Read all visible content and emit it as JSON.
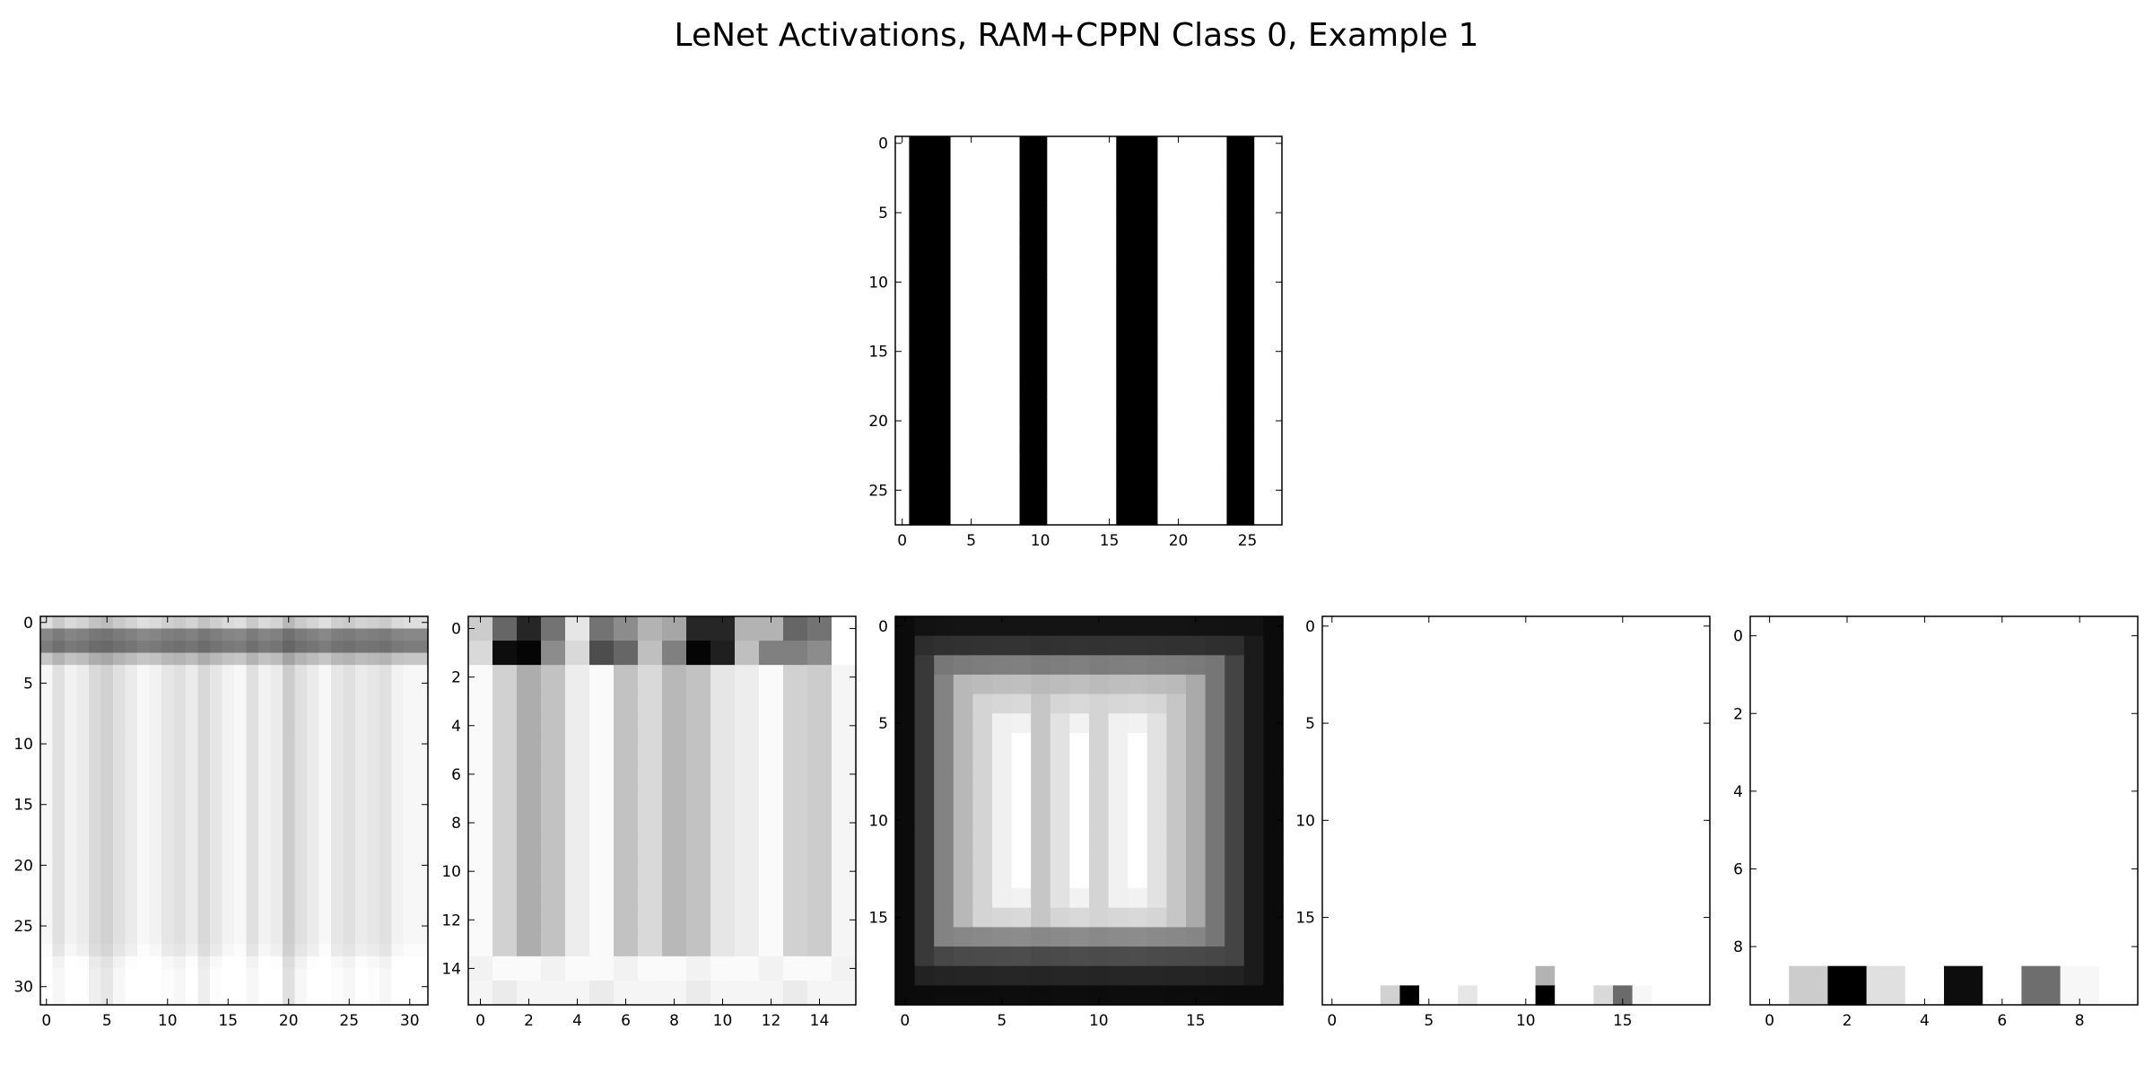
{
  "title": "LeNet Activations, RAM+CPPN Class 0, Example 1",
  "chart_data": [
    {
      "type": "heatmap",
      "panel": "input",
      "rows": 28,
      "cols": 28,
      "colormap": "gray (0 = black, 1 = white)",
      "xticks": [
        0,
        5,
        10,
        15,
        20,
        25
      ],
      "yticks": [
        0,
        5,
        10,
        15,
        20,
        25
      ],
      "row_profile": [
        1
      ],
      "col_profile": [
        1,
        0,
        0,
        0,
        1,
        1,
        1,
        1,
        1,
        0,
        0,
        1,
        1,
        1,
        1,
        1,
        0,
        0,
        0,
        1,
        1,
        1,
        1,
        1,
        0,
        0,
        1,
        1
      ]
    },
    {
      "type": "heatmap",
      "panel": "layer-1",
      "rows": 32,
      "cols": 32,
      "colormap": "gray (0 = black, 1 = white)",
      "xticks": [
        0,
        5,
        10,
        15,
        20,
        25,
        30
      ],
      "yticks": [
        0,
        5,
        10,
        15,
        20,
        25,
        30
      ],
      "col_profile": [
        0.97,
        0.88,
        0.95,
        0.92,
        0.85,
        0.82,
        0.88,
        0.92,
        0.97,
        0.95,
        0.9,
        0.88,
        0.92,
        0.85,
        0.9,
        0.95,
        0.97,
        0.88,
        0.95,
        0.92,
        0.8,
        0.88,
        0.92,
        0.97,
        0.9,
        0.88,
        0.92,
        0.9,
        0.88,
        0.95,
        0.97,
        0.97
      ],
      "row_profile": [
        0.9,
        0.55,
        0.5,
        0.8,
        1,
        1,
        1,
        1,
        1,
        1,
        1,
        1,
        1,
        1,
        1,
        1,
        1,
        1,
        1,
        1,
        1,
        1,
        1,
        1,
        1,
        1,
        1,
        1.02,
        1.08,
        1.1,
        1.1,
        1.1
      ]
    },
    {
      "type": "heatmap",
      "panel": "layer-2",
      "rows": 16,
      "cols": 16,
      "colormap": "gray (0 = black, 1 = white)",
      "xticks": [
        0,
        2,
        4,
        6,
        8,
        10,
        12,
        14
      ],
      "yticks": [
        0,
        2,
        4,
        6,
        8,
        10,
        12,
        14
      ],
      "row0": [
        0.8,
        0.4,
        0.15,
        0.45,
        0.9,
        0.45,
        0.55,
        0.7,
        0.65,
        0.15,
        0.15,
        0.7,
        0.7,
        0.4,
        0.45,
        1
      ],
      "row1": [
        0.85,
        0.05,
        0.02,
        0.55,
        0.85,
        0.3,
        0.4,
        0.75,
        0.5,
        0.02,
        0.12,
        0.75,
        0.5,
        0.5,
        0.55,
        1
      ],
      "col_body": [
        0.98,
        0.82,
        0.68,
        0.76,
        0.93,
        0.98,
        0.76,
        0.85,
        0.72,
        0.76,
        0.9,
        0.93,
        0.98,
        0.82,
        0.8,
        0.96
      ],
      "bottom_rows": [
        0.98,
        0.96
      ]
    },
    {
      "type": "heatmap",
      "panel": "layer-3",
      "rows": 20,
      "cols": 20,
      "colormap": "gray (0 = black, 1 = white)",
      "xticks": [
        0,
        5,
        10,
        15
      ],
      "yticks": [
        0,
        5,
        10,
        15
      ],
      "col_profile": [
        0.05,
        0.25,
        0.55,
        0.75,
        0.85,
        0.95,
        1,
        0.8,
        0.9,
        1,
        0.85,
        0.95,
        1,
        0.9,
        0.8,
        0.7,
        0.5,
        0.3,
        0.12,
        0.05
      ],
      "row_profile": [
        0.08,
        0.2,
        0.5,
        0.75,
        0.85,
        0.95,
        1,
        1,
        1,
        1,
        1,
        1,
        1,
        1,
        0.95,
        0.85,
        0.55,
        0.3,
        0.15,
        0.05
      ]
    },
    {
      "type": "heatmap",
      "panel": "layer-4",
      "rows": 20,
      "cols": 20,
      "colormap": "gray (0 = black, 1 = white)",
      "xticks": [
        0,
        5,
        10,
        15
      ],
      "yticks": [
        0,
        5,
        10,
        15
      ],
      "background": 1,
      "cells": [
        {
          "r": 19,
          "c": 3,
          "v": 0.82
        },
        {
          "r": 19,
          "c": 4,
          "v": 0.0
        },
        {
          "r": 19,
          "c": 7,
          "v": 0.9
        },
        {
          "r": 18,
          "c": 11,
          "v": 0.7
        },
        {
          "r": 19,
          "c": 11,
          "v": 0.0
        },
        {
          "r": 19,
          "c": 14,
          "v": 0.85
        },
        {
          "r": 19,
          "c": 15,
          "v": 0.42
        },
        {
          "r": 19,
          "c": 16,
          "v": 0.97
        }
      ]
    },
    {
      "type": "heatmap",
      "panel": "layer-5",
      "rows": 10,
      "cols": 10,
      "colormap": "gray (0 = black, 1 = white)",
      "xticks": [
        0,
        2,
        4,
        6,
        8
      ],
      "yticks": [
        0,
        2,
        4,
        6,
        8
      ],
      "background": 1,
      "cells": [
        {
          "r": 9,
          "c": 1,
          "v": 0.8
        },
        {
          "r": 9,
          "c": 2,
          "v": 0.0
        },
        {
          "r": 9,
          "c": 3,
          "v": 0.88
        },
        {
          "r": 9,
          "c": 5,
          "v": 0.05
        },
        {
          "r": 9,
          "c": 7,
          "v": 0.43
        },
        {
          "r": 9,
          "c": 8,
          "v": 0.97
        }
      ]
    }
  ]
}
